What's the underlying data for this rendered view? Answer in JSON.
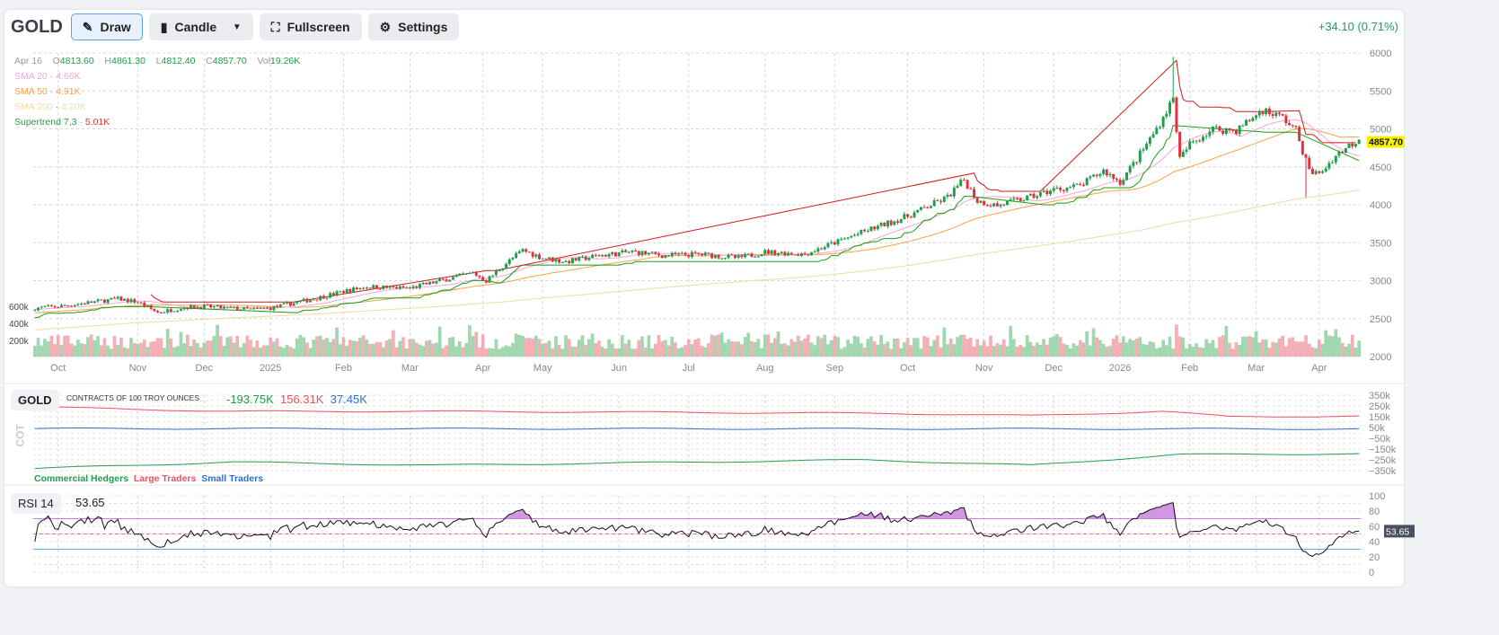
{
  "toolbar": {
    "symbol": "GOLD",
    "draw": "Draw",
    "chart_type": "Candle",
    "fullscreen": "Fullscreen",
    "settings": "Settings"
  },
  "change": "+34.10 (0.71%)",
  "ohlc": {
    "date": "Apr 16",
    "o_label": "O",
    "o": "4813.60",
    "h_label": "H",
    "h": "4861.30",
    "l_label": "L",
    "l": "4812.40",
    "c_label": "C",
    "c": "4857.70",
    "vol_label": "Vol",
    "vol": "19.26K"
  },
  "indicators": [
    {
      "name": "SMA 20",
      "value": "4.66K",
      "color": "#f4a6d7"
    },
    {
      "name": "SMA 50",
      "value": "4.91K",
      "color": "#ff9f4a"
    },
    {
      "name": "SMA 200",
      "value": "4.20K",
      "color": "#f3d9a4"
    },
    {
      "name": "Supertrend 7,3",
      "value": "5.01K",
      "color": "#1e9e4a",
      "value_color": "#e0313f"
    }
  ],
  "last_price": "4857.70",
  "cot": {
    "label": "GOLD",
    "units": "CONTRACTS OF 100 TROY OUNCES",
    "commercial": "-193.75K",
    "large": "156.31K",
    "small": "37.45K",
    "axis_title": "COT",
    "legend": [
      "Commercial Hedgers",
      "Large Traders",
      "Small Traders"
    ]
  },
  "rsi": {
    "label": "RSI 14",
    "value": "53.65"
  },
  "colors": {
    "up": "#1e9e4a",
    "down": "#e0313f",
    "sma20": "#f4a6d7",
    "sma50": "#ff9f4a",
    "sma200": "#f3d9a4",
    "st_up": "#12a012",
    "st_down": "#d01818",
    "commercial": "#1e9e4a",
    "large": "#f0505a",
    "small": "#2f6fd0",
    "rsi": "#111111",
    "rsi_fill": "#c77ddb"
  },
  "chart_data": {
    "type": "candlestick",
    "x_tick_labels": [
      {
        "label": "Oct",
        "day": 7
      },
      {
        "label": "Nov",
        "day": 31
      },
      {
        "label": "Dec",
        "day": 51
      },
      {
        "label": "2025",
        "day": 71
      },
      {
        "label": "Feb",
        "day": 93
      },
      {
        "label": "Mar",
        "day": 113
      },
      {
        "label": "Apr",
        "day": 135
      },
      {
        "label": "May",
        "day": 153
      },
      {
        "label": "Jun",
        "day": 176
      },
      {
        "label": "Jul",
        "day": 197
      },
      {
        "label": "Aug",
        "day": 220
      },
      {
        "label": "Sep",
        "day": 241
      },
      {
        "label": "Oct",
        "day": 263
      },
      {
        "label": "Nov",
        "day": 286
      },
      {
        "label": "Dec",
        "day": 307
      },
      {
        "label": "2026",
        "day": 327
      },
      {
        "label": "Feb",
        "day": 348
      },
      {
        "label": "Mar",
        "day": 368
      },
      {
        "label": "Apr",
        "day": 387
      }
    ],
    "days": 400,
    "price_ylim": [
      2000,
      6000
    ],
    "price_ticks": [
      "6000",
      "5500",
      "5000",
      "4500",
      "4000",
      "3500",
      "3000",
      "2500",
      "2000"
    ],
    "volume_ticks": [
      "600k",
      "400k",
      "200k"
    ],
    "close_anchors": [
      [
        0,
        2640
      ],
      [
        7,
        2660
      ],
      [
        25,
        2760
      ],
      [
        31,
        2720
      ],
      [
        37,
        2580
      ],
      [
        45,
        2650
      ],
      [
        51,
        2660
      ],
      [
        65,
        2620
      ],
      [
        71,
        2640
      ],
      [
        85,
        2770
      ],
      [
        93,
        2860
      ],
      [
        100,
        2920
      ],
      [
        113,
        2900
      ],
      [
        125,
        3030
      ],
      [
        132,
        3100
      ],
      [
        136,
        3000
      ],
      [
        142,
        3230
      ],
      [
        147,
        3400
      ],
      [
        153,
        3300
      ],
      [
        160,
        3250
      ],
      [
        170,
        3330
      ],
      [
        180,
        3380
      ],
      [
        190,
        3330
      ],
      [
        200,
        3350
      ],
      [
        212,
        3300
      ],
      [
        220,
        3380
      ],
      [
        232,
        3350
      ],
      [
        241,
        3500
      ],
      [
        250,
        3650
      ],
      [
        263,
        3850
      ],
      [
        275,
        4100
      ],
      [
        280,
        4330
      ],
      [
        284,
        4050
      ],
      [
        290,
        3990
      ],
      [
        300,
        4100
      ],
      [
        307,
        4200
      ],
      [
        315,
        4250
      ],
      [
        322,
        4450
      ],
      [
        327,
        4300
      ],
      [
        332,
        4600
      ],
      [
        338,
        5000
      ],
      [
        343,
        5400
      ],
      [
        345,
        4600
      ],
      [
        348,
        4800
      ],
      [
        355,
        5000
      ],
      [
        362,
        4980
      ],
      [
        370,
        5250
      ],
      [
        376,
        5150
      ],
      [
        380,
        4980
      ],
      [
        384,
        4450
      ],
      [
        387,
        4400
      ],
      [
        392,
        4650
      ],
      [
        396,
        4780
      ],
      [
        399,
        4857.7
      ]
    ],
    "cot_ylim": [
      -350000,
      350000
    ],
    "cot_ticks": [
      "350k",
      "250k",
      "150k",
      "50k",
      "−50k",
      "−150k",
      "−250k",
      "−350k"
    ],
    "cot_anchors": {
      "large": [
        [
          0,
          240
        ],
        [
          60,
          200
        ],
        [
          120,
          200
        ],
        [
          200,
          190
        ],
        [
          260,
          180
        ],
        [
          300,
          160
        ],
        [
          340,
          200
        ],
        [
          360,
          150
        ],
        [
          399,
          156
        ]
      ],
      "small": [
        [
          0,
          40
        ],
        [
          399,
          37
        ]
      ],
      "commercial": [
        [
          0,
          -330
        ],
        [
          60,
          -270
        ],
        [
          120,
          -300
        ],
        [
          200,
          -270
        ],
        [
          250,
          -250
        ],
        [
          300,
          -300
        ],
        [
          345,
          -200
        ],
        [
          399,
          -194
        ]
      ]
    },
    "rsi_ylim": [
      0,
      100
    ],
    "rsi_ticks": [
      "100",
      "80",
      "60",
      "40",
      "20",
      "0"
    ],
    "rsi_levels": [
      70,
      50,
      30
    ]
  }
}
